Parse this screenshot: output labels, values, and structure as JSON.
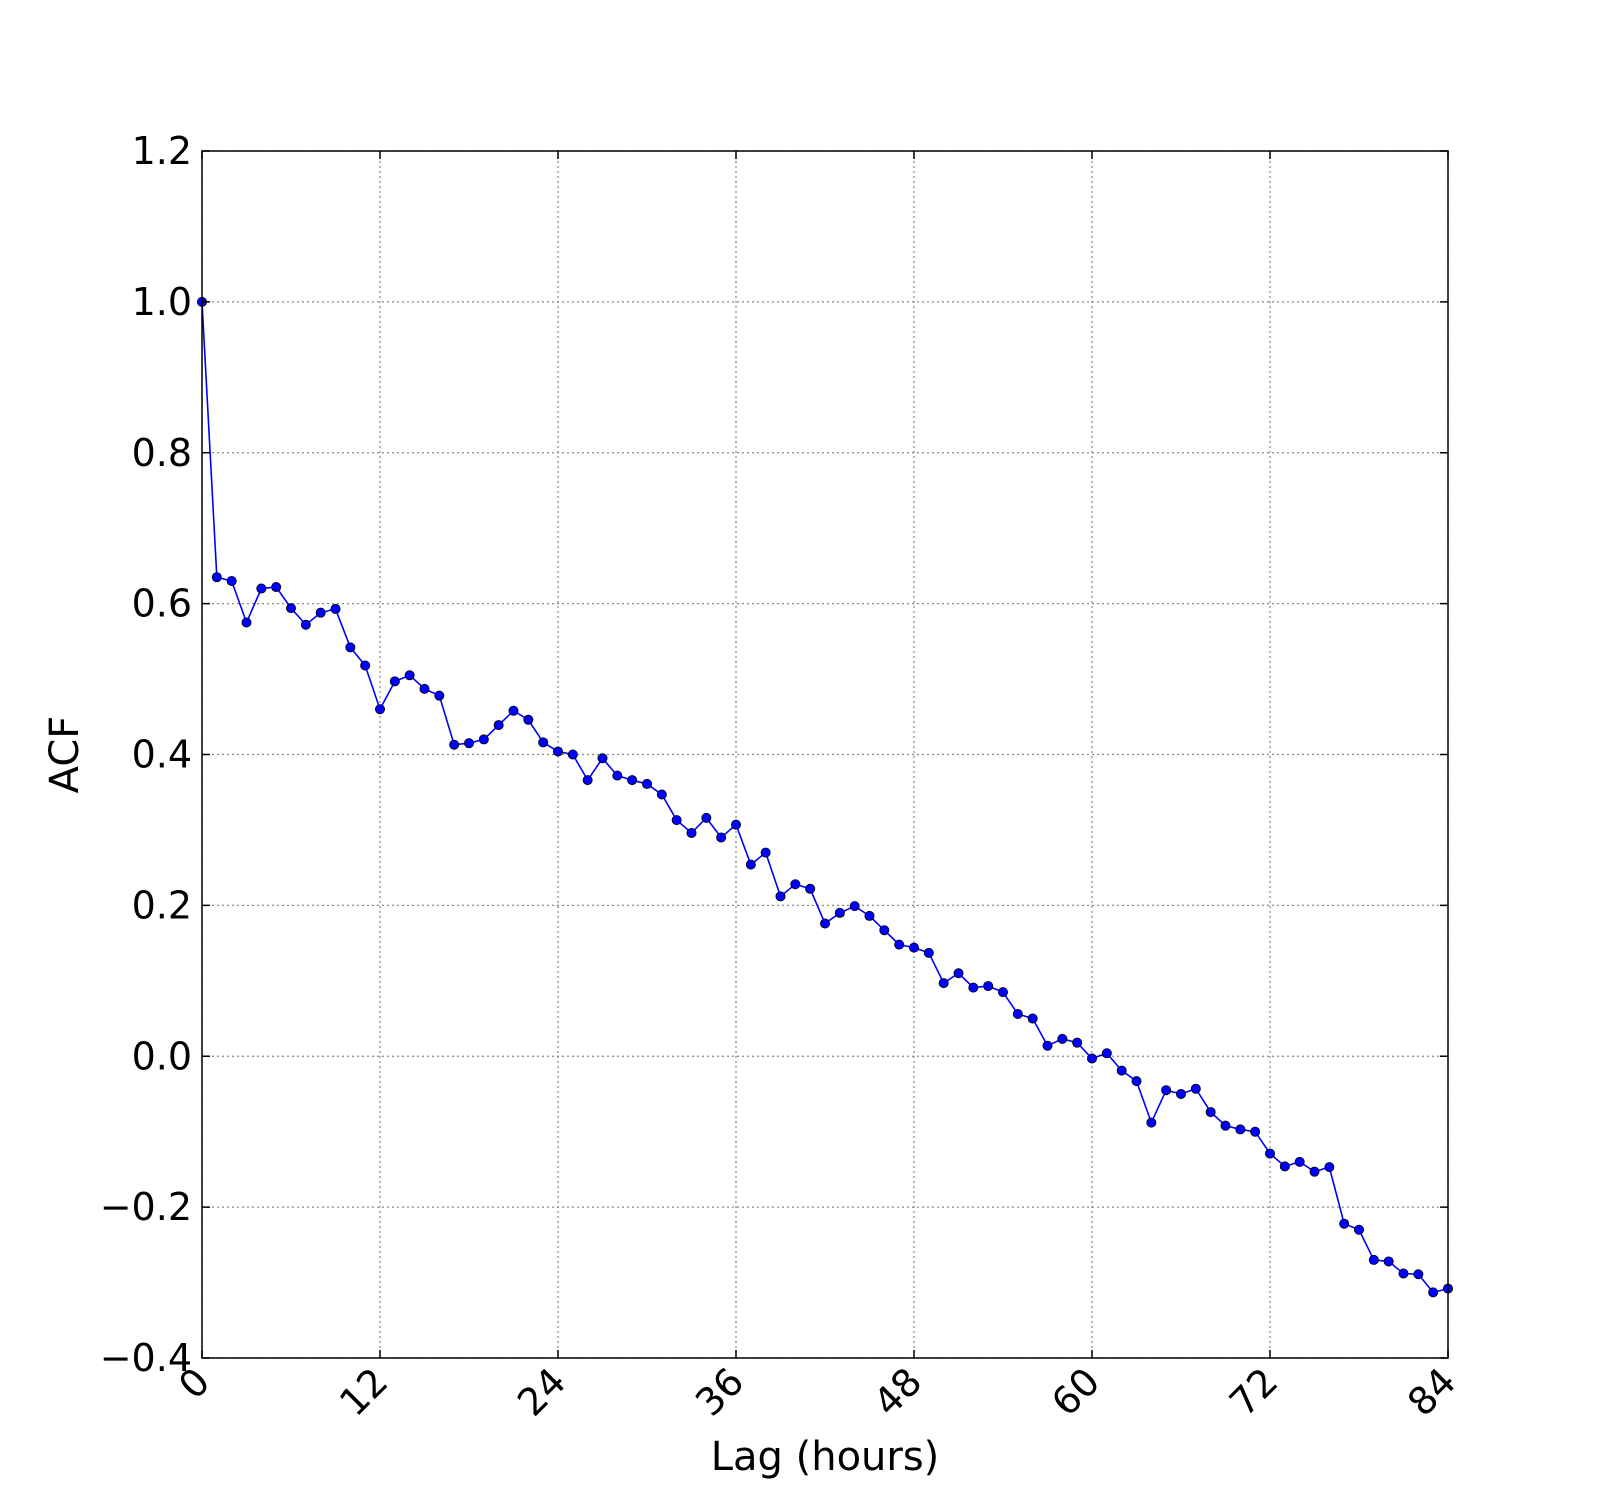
{
  "chart_data": {
    "type": "line",
    "title": "",
    "xlabel": "Lag (hours)",
    "ylabel": "ACF",
    "xlim": [
      0,
      84
    ],
    "ylim": [
      -0.4,
      1.2
    ],
    "xticks": [
      0,
      12,
      24,
      36,
      48,
      60,
      72,
      84
    ],
    "xtick_labels": [
      "0",
      "12",
      "24",
      "36",
      "48",
      "60",
      "72",
      "84"
    ],
    "yticks": [
      -0.4,
      -0.2,
      0.0,
      0.2,
      0.4,
      0.6,
      0.8,
      1.0,
      1.2
    ],
    "ytick_labels": [
      "−0.4",
      "−0.2",
      "0.0",
      "0.2",
      "0.4",
      "0.6",
      "0.8",
      "1.0",
      "1.2"
    ],
    "grid": true,
    "series": [
      {
        "color": "#0000ff",
        "marker": "circle",
        "x": [
          0,
          1,
          2,
          3,
          4,
          5,
          6,
          7,
          8,
          9,
          10,
          11,
          12,
          13,
          14,
          15,
          16,
          17,
          18,
          19,
          20,
          21,
          22,
          23,
          24,
          25,
          26,
          27,
          28,
          29,
          30,
          31,
          32,
          33,
          34,
          35,
          36,
          37,
          38,
          39,
          40,
          41,
          42,
          43,
          44,
          45,
          46,
          47,
          48,
          49,
          50,
          51,
          52,
          53,
          54,
          55,
          56,
          57,
          58,
          59,
          60,
          61,
          62,
          63,
          64,
          65,
          66,
          67,
          68,
          69,
          70,
          71,
          72,
          73,
          74,
          75,
          76,
          77,
          78,
          79,
          80,
          81,
          82,
          83,
          84
        ],
        "values": [
          1.0,
          0.635,
          0.63,
          0.575,
          0.62,
          0.622,
          0.594,
          0.572,
          0.588,
          0.593,
          0.542,
          0.518,
          0.46,
          0.497,
          0.505,
          0.487,
          0.478,
          0.413,
          0.415,
          0.42,
          0.439,
          0.458,
          0.446,
          0.416,
          0.404,
          0.4,
          0.366,
          0.395,
          0.372,
          0.366,
          0.361,
          0.347,
          0.313,
          0.296,
          0.316,
          0.29,
          0.307,
          0.254,
          0.27,
          0.212,
          0.228,
          0.222,
          0.176,
          0.19,
          0.199,
          0.186,
          0.167,
          0.148,
          0.144,
          0.137,
          0.097,
          0.11,
          0.091,
          0.093,
          0.085,
          0.056,
          0.05,
          0.014,
          0.023,
          0.018,
          -0.003,
          0.004,
          -0.019,
          -0.033,
          -0.088,
          -0.045,
          -0.05,
          -0.043,
          -0.074,
          -0.092,
          -0.097,
          -0.1,
          -0.129,
          -0.146,
          -0.14,
          -0.153,
          -0.147,
          -0.222,
          -0.23,
          -0.27,
          -0.272,
          -0.288,
          -0.289,
          -0.313,
          -0.308
        ]
      }
    ]
  }
}
